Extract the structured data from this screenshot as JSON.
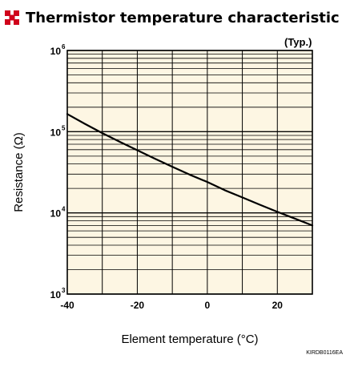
{
  "header": {
    "title": "Thermistor temperature characteristic",
    "icon": "red-square-cluster-icon",
    "icon_color": "#d0021b"
  },
  "chart_data": {
    "type": "line",
    "title": "Thermistor temperature characteristic",
    "annotation": "(Typ.)",
    "xlabel": "Element temperature (°C)",
    "ylabel": "Resistance (Ω)",
    "xlim": [
      -40,
      30
    ],
    "ylim": [
      1000,
      1000000
    ],
    "yscale": "log",
    "grid": true,
    "x_ticks": [
      -40,
      -30,
      -20,
      -10,
      0,
      10,
      20,
      30
    ],
    "x_tick_labels": [
      "-40",
      "-20",
      "0",
      "20"
    ],
    "x_tick_label_values": [
      -40,
      -20,
      0,
      20
    ],
    "y_tick_labels": [
      {
        "base": "10",
        "exp": "3",
        "value": 1000
      },
      {
        "base": "10",
        "exp": "4",
        "value": 10000
      },
      {
        "base": "10",
        "exp": "5",
        "value": 100000
      },
      {
        "base": "10",
        "exp": "6",
        "value": 1000000
      }
    ],
    "series": [
      {
        "x": [
          -40,
          -35,
          -30,
          -25,
          -20,
          -15,
          -10,
          -5,
          0,
          5,
          10,
          15,
          20,
          25,
          30
        ],
        "y": [
          165000,
          125000,
          96000,
          75000,
          59000,
          46500,
          37000,
          29500,
          24000,
          19000,
          15500,
          12600,
          10300,
          8500,
          7000
        ],
        "color": "#000000"
      }
    ],
    "plot_background": "#fdf6e3",
    "footer_code": "KIRDB0116EA"
  }
}
